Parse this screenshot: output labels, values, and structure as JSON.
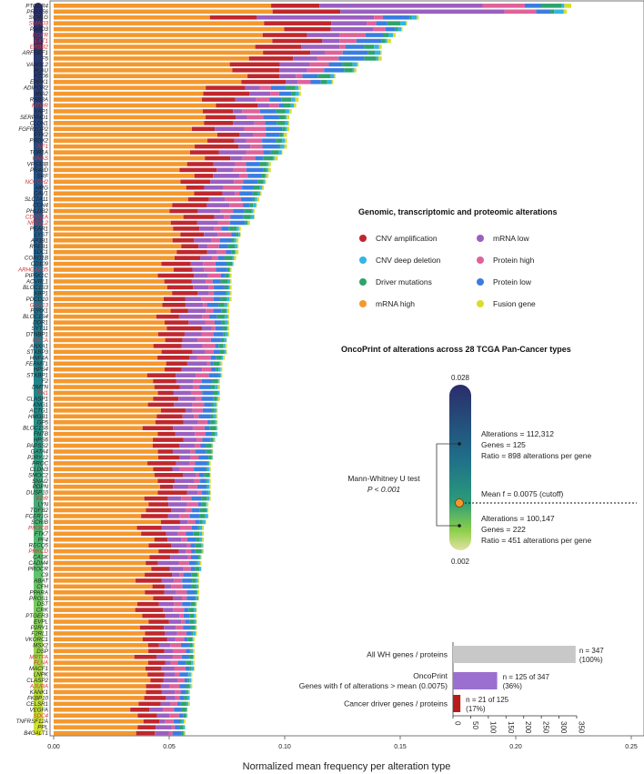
{
  "chart_data": {
    "type": "bar",
    "stacked": true,
    "orientation": "horizontal",
    "xlabel": "Normalized mean frequency per alteration type",
    "xlim": [
      0,
      0.25
    ],
    "xticks": [
      "0.00",
      "0.05",
      "0.10",
      "0.15",
      "0.20",
      "0.25"
    ],
    "series": [
      {
        "key": "mrna_high",
        "name": "mRNA high",
        "color": "#f4982d"
      },
      {
        "key": "cnv_amp",
        "name": "CNV amplification",
        "color": "#c0272d"
      },
      {
        "key": "mrna_low",
        "name": "mRNA low",
        "color": "#9b5fc0"
      },
      {
        "key": "prot_high",
        "name": "Protein high",
        "color": "#e0629a"
      },
      {
        "key": "prot_low",
        "name": "Protein low",
        "color": "#3a7de0"
      },
      {
        "key": "driver",
        "name": "Driver mutations",
        "color": "#2ca56b"
      },
      {
        "key": "cnv_del",
        "name": "CNV deep deletion",
        "color": "#33b5e5"
      },
      {
        "key": "fusion",
        "name": "Fusion gene",
        "color": "#d9dd2c"
      }
    ],
    "genes": [
      [
        "PTGER4",
        0,
        0.224
      ],
      [
        "PRSS56",
        0,
        0.222
      ],
      [
        "SCN1G",
        0,
        0.158
      ],
      [
        "SMAD3",
        1,
        0.153
      ],
      [
        "PARD3",
        0,
        0.151
      ],
      [
        "EGFR",
        1,
        0.148
      ],
      [
        "EXT1",
        1,
        0.146
      ],
      [
        "ERBB2",
        1,
        0.142
      ],
      [
        "ARFGEF1",
        0,
        0.142
      ],
      [
        "F5",
        0,
        0.142
      ],
      [
        "VANGL2",
        0,
        0.132
      ],
      [
        "PLAU",
        0,
        0.131
      ],
      [
        "FZD6",
        0,
        0.122
      ],
      [
        "EPPK1",
        0,
        0.121
      ],
      [
        "ADIPOR2",
        0,
        0.107
      ],
      [
        "MIA2",
        0,
        0.107
      ],
      [
        "RAB3A",
        0,
        0.106
      ],
      [
        "MTOR",
        1,
        0.105
      ],
      [
        "YAP1",
        0,
        0.103
      ],
      [
        "SERPIND1",
        0,
        0.102
      ],
      [
        "CLDN1",
        0,
        0.102
      ],
      [
        "FGFR1OP2",
        0,
        0.102
      ],
      [
        "PTK2",
        0,
        0.101
      ],
      [
        "PRDX2",
        0,
        0.101
      ],
      [
        "NF1",
        1,
        0.101
      ],
      [
        "TOR1A",
        0,
        0.099
      ],
      [
        "GNAS",
        1,
        0.097
      ],
      [
        "VPS33B",
        0,
        0.094
      ],
      [
        "PR48D",
        0,
        0.094
      ],
      [
        "SRF",
        0,
        0.093
      ],
      [
        "NOTCH2",
        1,
        0.092
      ],
      [
        "HRG",
        0,
        0.091
      ],
      [
        "CAV1",
        0,
        0.09
      ],
      [
        "SLC7A11",
        0,
        0.089
      ],
      [
        "CCN4",
        0,
        0.088
      ],
      [
        "PHLDB2",
        0,
        0.087
      ],
      [
        "CDKN1A",
        1,
        0.087
      ],
      [
        "NFE2L2",
        1,
        0.085
      ],
      [
        "PEAR1",
        0,
        0.081
      ],
      [
        "LYST",
        0,
        0.081
      ],
      [
        "AP3B1",
        0,
        0.08
      ],
      [
        "RREB1",
        0,
        0.08
      ],
      [
        "SDC1",
        0,
        0.08
      ],
      [
        "CORO1B",
        0,
        0.079
      ],
      [
        "CD109",
        0,
        0.078
      ],
      [
        "ARHGAP35",
        1,
        0.077
      ],
      [
        "PIP5K1C",
        0,
        0.077
      ],
      [
        "ACVRL1",
        0,
        0.077
      ],
      [
        "BLOC1S3",
        0,
        0.077
      ],
      [
        "XBP1",
        0,
        0.077
      ],
      [
        "PDCD10",
        0,
        0.077
      ],
      [
        "GNA13",
        1,
        0.076
      ],
      [
        "P2RX1",
        0,
        0.076
      ],
      [
        "BLOC1S4",
        0,
        0.076
      ],
      [
        "DDR1",
        0,
        0.076
      ],
      [
        "SYT11",
        0,
        0.076
      ],
      [
        "DTNBP1",
        0,
        0.076
      ],
      [
        "NACA",
        1,
        0.075
      ],
      [
        "ANXA1",
        0,
        0.075
      ],
      [
        "STXBP3",
        0,
        0.075
      ],
      [
        "HNF4A",
        0,
        0.074
      ],
      [
        "FERMT1",
        0,
        0.073
      ],
      [
        "HPS4",
        0,
        0.073
      ],
      [
        "STXBP1",
        0,
        0.073
      ],
      [
        "F2",
        0,
        0.072
      ],
      [
        "DMTN",
        0,
        0.072
      ],
      [
        "FN1",
        1,
        0.072
      ],
      [
        "CLASP1",
        0,
        0.072
      ],
      [
        "KNG1",
        0,
        0.071
      ],
      [
        "ACTG1",
        0,
        0.071
      ],
      [
        "HMGB1",
        0,
        0.071
      ],
      [
        "GP5",
        0,
        0.071
      ],
      [
        "BLOC1S6",
        0,
        0.071
      ],
      [
        "FNTB",
        0,
        0.071
      ],
      [
        "HPS6",
        0,
        0.07
      ],
      [
        "PAPSS2",
        0,
        0.069
      ],
      [
        "GATA4",
        0,
        0.069
      ],
      [
        "P2RY12",
        0,
        0.069
      ],
      [
        "PROC",
        0,
        0.068
      ],
      [
        "CLDN3",
        0,
        0.068
      ],
      [
        "SMOC2",
        0,
        0.068
      ],
      [
        "SNAI2",
        0,
        0.068
      ],
      [
        "PDPN",
        0,
        0.068
      ],
      [
        "DUSP10",
        0,
        0.068
      ],
      [
        "KDR",
        1,
        0.068
      ],
      [
        "LYN",
        0,
        0.067
      ],
      [
        "TGFB2",
        0,
        0.067
      ],
      [
        "FCER1G",
        0,
        0.067
      ],
      [
        "SCRIB",
        0,
        0.066
      ],
      [
        "PIK3CB",
        1,
        0.065
      ],
      [
        "FTK7",
        0,
        0.065
      ],
      [
        "PF4",
        0,
        0.065
      ],
      [
        "RECQ5",
        0,
        0.065
      ],
      [
        "PRKCD",
        1,
        0.065
      ],
      [
        "CASK",
        0,
        0.064
      ],
      [
        "CADM4",
        0,
        0.064
      ],
      [
        "PROCR",
        0,
        0.064
      ],
      [
        "C9",
        0,
        0.063
      ],
      [
        "ABAT",
        0,
        0.063
      ],
      [
        "CFH",
        0,
        0.063
      ],
      [
        "PPARA",
        0,
        0.063
      ],
      [
        "PROS1",
        0,
        0.063
      ],
      [
        "DST",
        0,
        0.062
      ],
      [
        "CRK",
        0,
        0.062
      ],
      [
        "PTGER3",
        0,
        0.062
      ],
      [
        "EVPL",
        0,
        0.062
      ],
      [
        "P2RY1",
        0,
        0.062
      ],
      [
        "F2RL1",
        0,
        0.062
      ],
      [
        "VKORC1",
        0,
        0.061
      ],
      [
        "MSX2",
        0,
        0.061
      ],
      [
        "DSP",
        0,
        0.061
      ],
      [
        "MRTFA",
        1,
        0.061
      ],
      [
        "FLNA",
        1,
        0.061
      ],
      [
        "MACF1",
        0,
        0.061
      ],
      [
        "LNPK",
        0,
        0.06
      ],
      [
        "CLASP2",
        0,
        0.06
      ],
      [
        "AJUBA",
        1,
        0.06
      ],
      [
        "KANK1",
        0,
        0.059
      ],
      [
        "FKBP10",
        0,
        0.059
      ],
      [
        "CELSR1",
        0,
        0.059
      ],
      [
        "VEGFA",
        0,
        0.058
      ],
      [
        "SDC4",
        1,
        0.058
      ],
      [
        "TNFRSF12A",
        0,
        0.057
      ],
      [
        "PPL",
        0,
        0.057
      ],
      [
        "B4GALT1",
        0,
        0.057
      ]
    ],
    "legend_title": "Genomic, transcriptomic and proteomic alterations",
    "legend_items": [
      {
        "label": "CNV amplification",
        "color": "#c0272d"
      },
      {
        "label": "mRNA low",
        "color": "#9b5fc0"
      },
      {
        "label": "CNV deep deletion",
        "color": "#33b5e5"
      },
      {
        "label": "Protein high",
        "color": "#e0629a"
      },
      {
        "label": "Driver mutations",
        "color": "#2ca56b"
      },
      {
        "label": "Protein low",
        "color": "#3a7de0"
      },
      {
        "label": "mRNA high",
        "color": "#f4982d"
      },
      {
        "label": "Fusion gene",
        "color": "#d9dd2c"
      }
    ],
    "oncoprint": {
      "title": "OncoPrint of alterations across 28 TCGA Pan-Cancer types",
      "top_value": "0.028",
      "bottom_value": "0.002",
      "upper_stats": [
        "Alterations = 112,312",
        "Genes = 125",
        "Ratio = 898 alterations per gene"
      ],
      "mean_label": "Mean f = 0.0075 (cutoff)",
      "lower_stats": [
        "Alterations = 100,147",
        "Genes = 222",
        "Ratio = 451 alterations per gene"
      ],
      "test_name": "Mann-Whitney U test",
      "test_p": "P < 0.001"
    },
    "summary_bars": {
      "categories": [
        "All WH genes / proteins",
        "OncoPrint\nGenes with f of alterations > mean (0.0075)",
        "Cancer driver genes / proteins"
      ],
      "values": [
        347,
        125,
        21
      ],
      "labels": [
        "n = 347\n(100%)",
        "n = 125 of 347\n(36%)",
        "n = 21 of 125\n(17%)"
      ],
      "colors": [
        "#c8c8c8",
        "#9b6fd0",
        "#b71c1c"
      ],
      "xlim": [
        0,
        350
      ],
      "xticks": [
        "0",
        "50",
        "100",
        "150",
        "200",
        "250",
        "300",
        "350"
      ]
    }
  },
  "colors": {
    "driver_gene_label": "#d32f2f",
    "normal_gene_label": "#222222"
  }
}
